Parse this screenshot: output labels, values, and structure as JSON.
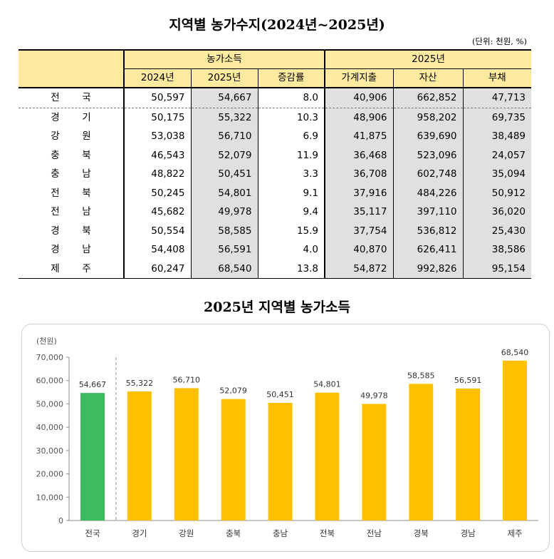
{
  "table_title": "지역별 농가수지(2024년~2025년)",
  "unit_note": "(단위: 천원, %)",
  "table": {
    "group_headers": [
      "농가소득",
      "2025년"
    ],
    "column_headers": [
      "2024년",
      "2025년",
      "증감률",
      "가계지출",
      "자산",
      "부채"
    ],
    "rows": [
      {
        "region": [
          "전",
          "국"
        ],
        "values": [
          "50,597",
          "54,667",
          "8.0",
          "40,906",
          "662,852",
          "47,713"
        ]
      },
      {
        "region": [
          "경",
          "기"
        ],
        "values": [
          "50,175",
          "55,322",
          "10.3",
          "48,906",
          "958,202",
          "69,735"
        ]
      },
      {
        "region": [
          "강",
          "원"
        ],
        "values": [
          "53,038",
          "56,710",
          "6.9",
          "41,875",
          "639,690",
          "38,489"
        ]
      },
      {
        "region": [
          "충",
          "북"
        ],
        "values": [
          "46,543",
          "52,079",
          "11.9",
          "36,468",
          "523,096",
          "24,057"
        ]
      },
      {
        "region": [
          "충",
          "남"
        ],
        "values": [
          "48,822",
          "50,451",
          "3.3",
          "36,708",
          "602,748",
          "35,094"
        ]
      },
      {
        "region": [
          "전",
          "북"
        ],
        "values": [
          "50,245",
          "54,801",
          "9.1",
          "37,916",
          "484,226",
          "50,912"
        ]
      },
      {
        "region": [
          "전",
          "남"
        ],
        "values": [
          "45,682",
          "49,978",
          "9.4",
          "35,117",
          "397,110",
          "36,020"
        ]
      },
      {
        "region": [
          "경",
          "북"
        ],
        "values": [
          "50,554",
          "58,585",
          "15.9",
          "37,754",
          "536,812",
          "25,430"
        ]
      },
      {
        "region": [
          "경",
          "남"
        ],
        "values": [
          "54,408",
          "56,591",
          "4.0",
          "40,870",
          "626,411",
          "38,586"
        ]
      },
      {
        "region": [
          "제",
          "주"
        ],
        "values": [
          "60,247",
          "68,540",
          "13.8",
          "54,872",
          "992,826",
          "95,154"
        ]
      }
    ]
  },
  "chart_title": "2025년 지역별 농가소득",
  "chart_data": {
    "type": "bar",
    "title": "2025년 지역별 농가소득",
    "ylabel": "(천원)",
    "xlabel": "",
    "categories": [
      "전국",
      "경기",
      "강원",
      "충북",
      "충남",
      "전북",
      "전남",
      "경북",
      "경남",
      "제주"
    ],
    "values": [
      54667,
      55322,
      56710,
      52079,
      50451,
      54801,
      49978,
      58585,
      56591,
      68540
    ],
    "value_labels": [
      "54,667",
      "55,322",
      "56,710",
      "52,079",
      "50,451",
      "54,801",
      "49,978",
      "58,585",
      "56,591",
      "68,540"
    ],
    "ylim": [
      0,
      70000
    ],
    "yticks": [
      0,
      10000,
      20000,
      30000,
      40000,
      50000,
      60000,
      70000
    ],
    "ytick_labels": [
      "0",
      "10,000",
      "20,000",
      "30,000",
      "40,000",
      "50,000",
      "60,000",
      "70,000"
    ],
    "grid": false,
    "colors": {
      "national": "#3cbc5c",
      "region": "#ffc000"
    }
  }
}
